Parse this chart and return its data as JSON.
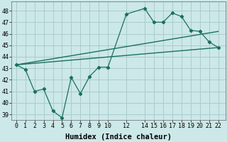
{
  "xlabel": "Humidex (Indice chaleur)",
  "bg_color": "#cce8e8",
  "grid_color": "#aacccc",
  "line_color": "#1a7060",
  "line1_x": [
    0,
    1,
    2,
    3,
    4,
    5,
    6,
    7,
    8,
    9,
    10,
    12,
    14,
    15,
    16,
    17,
    18,
    19,
    20,
    21,
    22
  ],
  "line1_y": [
    43.3,
    42.9,
    41.0,
    41.2,
    39.3,
    38.7,
    42.2,
    40.8,
    42.3,
    43.1,
    43.1,
    47.7,
    48.2,
    47.0,
    47.0,
    47.8,
    47.5,
    46.3,
    46.2,
    45.3,
    44.8
  ],
  "line2_x": [
    0,
    22
  ],
  "line2_y": [
    43.3,
    46.2
  ],
  "line3_x": [
    0,
    22
  ],
  "line3_y": [
    43.3,
    44.8
  ],
  "ylim": [
    38.5,
    48.8
  ],
  "xlim": [
    -0.5,
    22.8
  ],
  "yticks": [
    39,
    40,
    41,
    42,
    43,
    44,
    45,
    46,
    47,
    48
  ],
  "xticks": [
    0,
    1,
    2,
    3,
    4,
    5,
    6,
    7,
    8,
    9,
    10,
    12,
    14,
    15,
    16,
    17,
    18,
    19,
    20,
    21,
    22
  ],
  "xlabel_fontsize": 7.5,
  "tick_fontsize": 6.0
}
